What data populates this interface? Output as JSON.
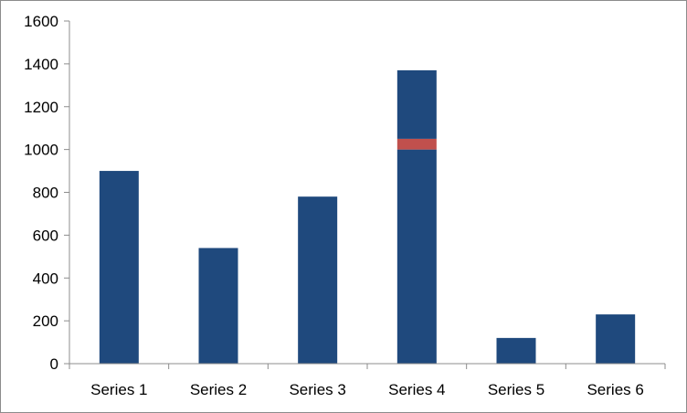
{
  "chart_data": {
    "type": "bar",
    "stacked": true,
    "categories": [
      "Series 1",
      "Series 2",
      "Series 3",
      "Series 4",
      "Series 5",
      "Series 6"
    ],
    "series": [
      {
        "values": [
          900,
          540,
          780,
          1000,
          120,
          230
        ],
        "color": "#1f497d"
      },
      {
        "values": [
          0,
          0,
          0,
          50,
          0,
          0
        ],
        "color": "#c0504d"
      },
      {
        "values": [
          0,
          0,
          0,
          320,
          0,
          0
        ],
        "color": "#1f497d"
      }
    ],
    "yticks": [
      "0",
      "200",
      "400",
      "600",
      "800",
      "1000",
      "1200",
      "1400",
      "1600"
    ],
    "ylim": [
      0,
      1600
    ],
    "grid": false,
    "legend": "none"
  }
}
